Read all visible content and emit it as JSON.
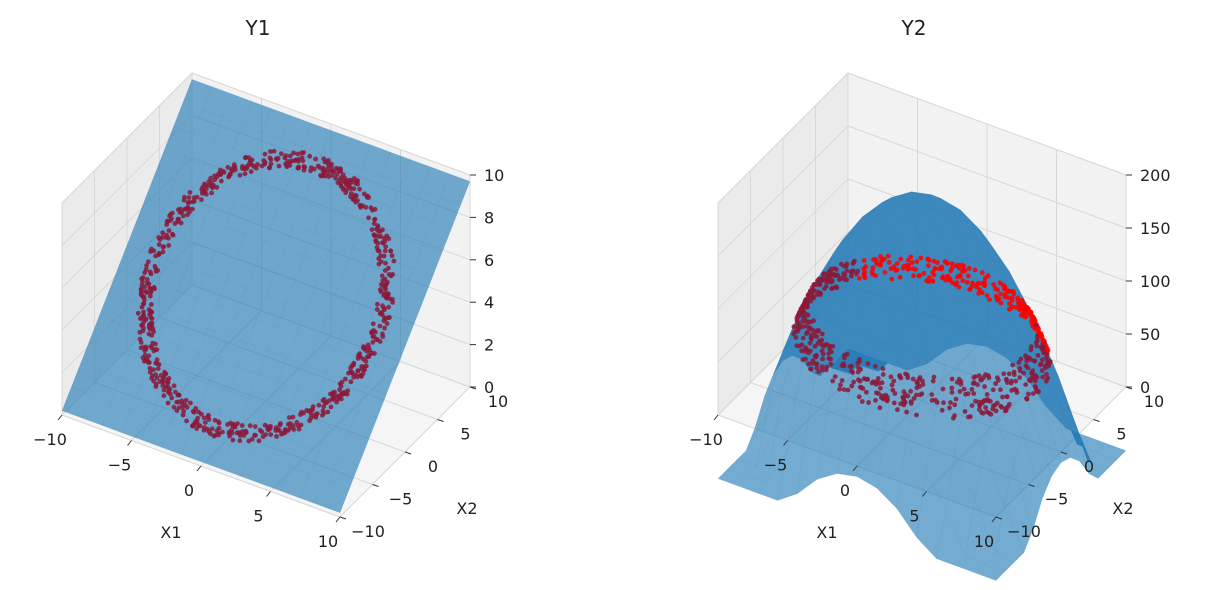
{
  "chart_data": [
    {
      "type": "3d-surface-scatter",
      "title": "Y1",
      "xlabel": "X1",
      "ylabel": "X2",
      "zlabel": "",
      "xlim": [
        -10,
        10
      ],
      "ylim": [
        -10,
        10
      ],
      "zlim": [
        0,
        10
      ],
      "x_ticks": [
        "−10",
        "−5",
        "0",
        "5",
        "10"
      ],
      "y_ticks": [
        "−10",
        "−5",
        "0",
        "5",
        "10"
      ],
      "z_ticks": [
        "0",
        "2",
        "4",
        "6",
        "8",
        "10"
      ],
      "surface": {
        "name": "",
        "formula": "plane",
        "color": "#1f77b4"
      },
      "scatter": {
        "name": "",
        "shape": "ring",
        "radius_range": [
          7.4,
          8.4
        ],
        "count": 700,
        "color": "#8b1a3a"
      },
      "grid": true,
      "legend": "none"
    },
    {
      "type": "3d-surface-scatter",
      "title": "Y2",
      "xlabel": "X1",
      "ylabel": "X2",
      "zlabel": "",
      "xlim": [
        -10,
        10
      ],
      "ylim": [
        -10,
        10
      ],
      "zlim": [
        0,
        200
      ],
      "x_ticks": [
        "−10",
        "−5",
        "0",
        "5",
        "10"
      ],
      "y_ticks": [
        "−10",
        "−5",
        "0",
        "5",
        "10"
      ],
      "z_ticks": [
        "0",
        "50",
        "100",
        "150",
        "200"
      ],
      "surface": {
        "name": "",
        "formula": "paraboloid",
        "peak": 190,
        "color": "#1f77b4"
      },
      "scatter": {
        "name": "",
        "shape": "ring",
        "radius_range": [
          7.4,
          8.4
        ],
        "count": 700,
        "color": "#8b1a3a",
        "highlight_color": "#ff0000"
      },
      "grid": true,
      "legend": "none"
    }
  ]
}
